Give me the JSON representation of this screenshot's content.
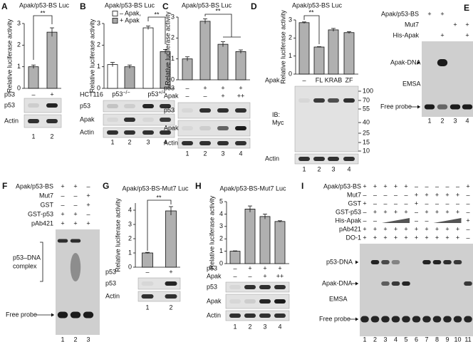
{
  "chart_data": [
    {
      "type": "bar",
      "panel": "A",
      "title": "Apak/p53-BS Luc",
      "ylabel": "Relative luciferase activity",
      "ylim": [
        0,
        3
      ],
      "yticks": [
        0,
        1,
        2,
        3
      ],
      "values": [
        1.0,
        2.6
      ],
      "errors": [
        0.08,
        0.2
      ],
      "color": "#b0b0b0",
      "significance": "**",
      "conditions": [
        {
          "label": "p53",
          "values": [
            "–",
            "+"
          ]
        }
      ],
      "blots": [
        "p53",
        "Actin"
      ],
      "lanes": [
        "1",
        "2"
      ]
    },
    {
      "type": "bar",
      "panel": "B",
      "title": "Apak/p53-BS Luc",
      "ylabel": "Relative luciferase activity",
      "ylim": [
        0,
        3
      ],
      "yticks": [
        0,
        1,
        2,
        3
      ],
      "series": [
        {
          "name": "– Apak,",
          "color": "#ffffff",
          "values": [
            1.1,
            null,
            2.8,
            null
          ],
          "errors": [
            0.1,
            null,
            0.08,
            null
          ]
        },
        {
          "name": "+ Apak",
          "color": "#a8a8a8",
          "values": [
            null,
            1.0,
            null,
            1.7
          ],
          "errors": [
            null,
            0.08,
            null,
            0.1
          ]
        }
      ],
      "significance": "**",
      "cell_line": "HCT116",
      "genotypes": [
        {
          "base": "p53",
          "sup": "−/−"
        },
        {
          "base": "p53",
          "sup": "+/+"
        }
      ],
      "blots": [
        "p53",
        "Apak",
        "Actin"
      ],
      "lanes": [
        "1",
        "2",
        "3",
        "4"
      ]
    },
    {
      "type": "bar",
      "panel": "C",
      "title": "Apak/p53-BS Luc",
      "ylabel": "Relative luciferase activity",
      "ylim": [
        0,
        3
      ],
      "yticks": [
        0,
        1,
        2,
        3
      ],
      "values": [
        1.0,
        2.8,
        1.7,
        1.35
      ],
      "errors": [
        0.1,
        0.12,
        0.12,
        0.08
      ],
      "color": "#b0b0b0",
      "significance": "**",
      "conditions": [
        {
          "label": "p53",
          "values": [
            "–",
            "+",
            "+",
            "+"
          ]
        },
        {
          "label": "Apak",
          "values": [
            "–",
            "–",
            "+",
            "++"
          ]
        }
      ],
      "blots": [
        "p53",
        "Apak",
        "Actin"
      ],
      "lanes": [
        "1",
        "2",
        "3",
        "4"
      ]
    },
    {
      "type": "bar",
      "panel": "D",
      "title": "Apak/p53-BS Luc",
      "ylabel": "Relative luciferase activity",
      "ylim": [
        0,
        3
      ],
      "yticks": [
        0,
        1,
        2,
        3
      ],
      "values": [
        2.85,
        1.5,
        2.45,
        2.3
      ],
      "errors": [
        0.04,
        0.02,
        0.08,
        0.05
      ],
      "color": "#b0b0b0",
      "significance": "**",
      "conditions": [
        {
          "label": "Apak",
          "values": [
            "–",
            "FL",
            "KRAB",
            "ZF"
          ]
        }
      ],
      "blots": [
        [
          "IB:",
          "Myc"
        ],
        "Actin"
      ],
      "markers": [
        100,
        70,
        55,
        40,
        25,
        15,
        10
      ],
      "lanes": [
        "1",
        "2",
        "3",
        "4"
      ]
    },
    {
      "type": "bar",
      "panel": "G",
      "title": "Apak/p53-BS-Mut7 Luc",
      "ylabel": "Relative luciferase activity",
      "ylim": [
        0,
        4.5
      ],
      "yticks": [
        0,
        1,
        2,
        3,
        4
      ],
      "values": [
        1.0,
        3.95
      ],
      "errors": [
        0.04,
        0.3
      ],
      "color": "#b0b0b0",
      "significance": "**",
      "conditions": [
        {
          "label": "p53",
          "values": [
            "–",
            "+"
          ]
        }
      ],
      "blots": [
        "p53",
        "Actin"
      ],
      "lanes": [
        "1",
        "2"
      ]
    },
    {
      "type": "bar",
      "panel": "H",
      "title": "Apak/p53-BS-Mut7 Luc",
      "ylabel": "Relative luciferase activity",
      "ylim": [
        0,
        5
      ],
      "yticks": [
        0,
        1,
        2,
        3,
        4,
        5
      ],
      "values": [
        1.0,
        4.4,
        3.8,
        3.4
      ],
      "errors": [
        0.03,
        0.25,
        0.2,
        0.06
      ],
      "color": "#b0b0b0",
      "conditions": [
        {
          "label": "p53",
          "values": [
            "–",
            "+",
            "+",
            "+"
          ]
        },
        {
          "label": "Apak",
          "values": [
            "–",
            "–",
            "+",
            "++"
          ]
        }
      ],
      "blots": [
        "p53",
        "Apak",
        "Actin"
      ],
      "lanes": [
        "1",
        "2",
        "3",
        "4"
      ]
    }
  ],
  "gels": [
    {
      "panel": "E",
      "rows": [
        {
          "label": "Apak/p53-BS",
          "values": [
            "+",
            "+",
            null,
            null
          ]
        },
        {
          "label": "Mut7",
          "values": [
            null,
            null,
            "+",
            "+"
          ]
        },
        {
          "label": "His-Apak",
          "values": [
            null,
            "+",
            null,
            "+"
          ]
        }
      ],
      "annotations": [
        "Apak-DNA",
        "EMSA",
        "Free probe"
      ],
      "lanes": [
        "1",
        "2",
        "3",
        "4"
      ]
    },
    {
      "panel": "F",
      "rows": [
        {
          "label": "Apak/p53-BS",
          "values": [
            "+",
            "+",
            "–"
          ]
        },
        {
          "label": "Mut7",
          "values": [
            "–",
            "–",
            "+"
          ]
        },
        {
          "label": "GST",
          "values": [
            "–",
            "–",
            "+"
          ]
        },
        {
          "label": "GST-p53",
          "values": [
            "+",
            "+",
            "–"
          ]
        },
        {
          "label": "pAb421",
          "values": [
            "+",
            "+",
            "+"
          ]
        }
      ],
      "annotations": [
        "p53–DNA",
        "complex",
        "Free probe"
      ],
      "lanes": [
        "1",
        "2",
        "3"
      ]
    },
    {
      "panel": "I",
      "rows": [
        {
          "label": "Apak/p53-BS",
          "values": [
            "+",
            "+",
            "+",
            "+",
            "+",
            "–",
            "–",
            "–",
            "–",
            "–",
            "+"
          ]
        },
        {
          "label": "Mut7",
          "values": [
            "–",
            "–",
            "–",
            "–",
            "–",
            "+",
            "+",
            "+",
            "+",
            "+",
            "–"
          ]
        },
        {
          "label": "GST",
          "values": [
            "+",
            "–",
            "–",
            "–",
            "–",
            "+",
            "–",
            "–",
            "–",
            "–",
            "–"
          ]
        },
        {
          "label": "GST-p53",
          "values": [
            "–",
            "+",
            "+",
            "+",
            "+",
            "–",
            "+",
            "+",
            "+",
            "+",
            "–"
          ]
        },
        {
          "label": "His-Apak",
          "values": [
            "–",
            "–",
            null,
            null,
            null,
            "–",
            "–",
            null,
            null,
            null,
            "+"
          ]
        },
        {
          "label": "pAb421",
          "values": [
            "+",
            "+",
            "+",
            "+",
            "+",
            "+",
            "+",
            "+",
            "+",
            "+",
            "–"
          ]
        },
        {
          "label": "DO-1",
          "values": [
            "+",
            "+",
            "+",
            "+",
            "+",
            "+",
            "+",
            "+",
            "+",
            "+",
            "–"
          ]
        }
      ],
      "annotations": [
        "p53-DNA",
        "Apak-DNA",
        "EMSA",
        "Free probe"
      ],
      "lanes": [
        "1",
        "2",
        "3",
        "4",
        "5",
        "6",
        "7",
        "8",
        "9",
        "10",
        "11"
      ]
    }
  ]
}
